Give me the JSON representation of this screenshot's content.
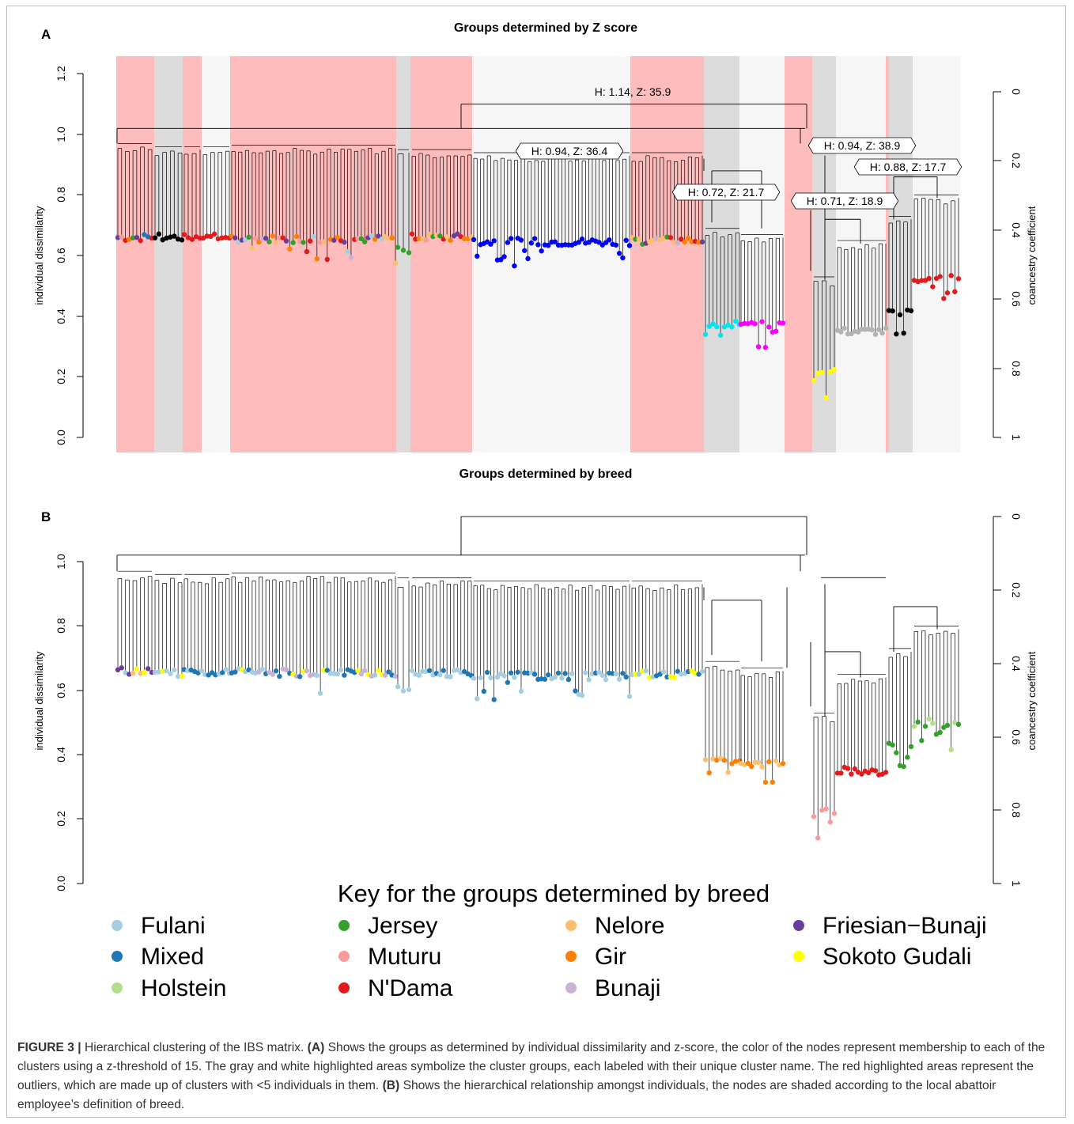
{
  "figure_number": "FIGURE 3 |",
  "caption": {
    "lead": "Hierarchical clustering of the IBS matrix.",
    "a_tag": "(A)",
    "a_text": "Shows the groups as determined by individual dissimilarity and z-score, the color of the nodes represent membership to each of the clusters using a z-threshold of 15. The gray and white highlighted areas symbolize the cluster groups, each labeled with their unique cluster name. The red highlighted areas represent the outliers, which are made up of clusters with <5 individuals in them.",
    "b_tag": "(B)",
    "b_text": "Shows the hierarchical relationship amongst individuals, the nodes are shaded according to the local abattoir employee’s definition of breed."
  },
  "panel_a": {
    "letter": "A",
    "title": "Groups determined by Z score",
    "ylabel": "individual dissimilarity",
    "y2label": "coancestry coefficient",
    "yticks": [
      "0.0",
      "0.2",
      "0.4",
      "0.6",
      "0.8",
      "1.0",
      "1.2"
    ],
    "y2ticks": [
      "0",
      "0.2",
      "0.4",
      "0.6",
      "0.8",
      "1"
    ],
    "cluster_labels": [
      "H: 1.14, Z: 35.9",
      "H: 0.94, Z: 36.4",
      "H: 0.94, Z: 38.9",
      "H: 0.88, Z: 17.7",
      "H: 0.72, Z: 21.7",
      "H: 0.71, Z: 18.9"
    ]
  },
  "panel_b": {
    "letter": "B",
    "title": "Groups determined by breed",
    "ylabel": "individual dissimilarity",
    "y2label": "coancestry coefficient",
    "yticks": [
      "0.0",
      "0.2",
      "0.4",
      "0.6",
      "0.8",
      "1.0"
    ],
    "y2ticks": [
      "0",
      "0.2",
      "0.4",
      "0.6",
      "0.8",
      "1"
    ]
  },
  "key": {
    "title": "Key for the groups determined by breed",
    "items": [
      {
        "label": "Fulani",
        "color": "#a6cee3"
      },
      {
        "label": "Mixed",
        "color": "#1f78b4"
      },
      {
        "label": "Holstein",
        "color": "#b2df8a"
      },
      {
        "label": "Jersey",
        "color": "#33a02c"
      },
      {
        "label": "Muturu",
        "color": "#fb9a99"
      },
      {
        "label": "N'Dama",
        "color": "#e31a1c"
      },
      {
        "label": "Nelore",
        "color": "#fdbf6f"
      },
      {
        "label": "Gir",
        "color": "#ff7f00"
      },
      {
        "label": "Bunaji",
        "color": "#cab2d6"
      },
      {
        "label": "Friesian−Bunaji",
        "color": "#6a3d9a"
      },
      {
        "label": "Sokoto Gudali",
        "color": "#ffff00"
      }
    ]
  }
}
